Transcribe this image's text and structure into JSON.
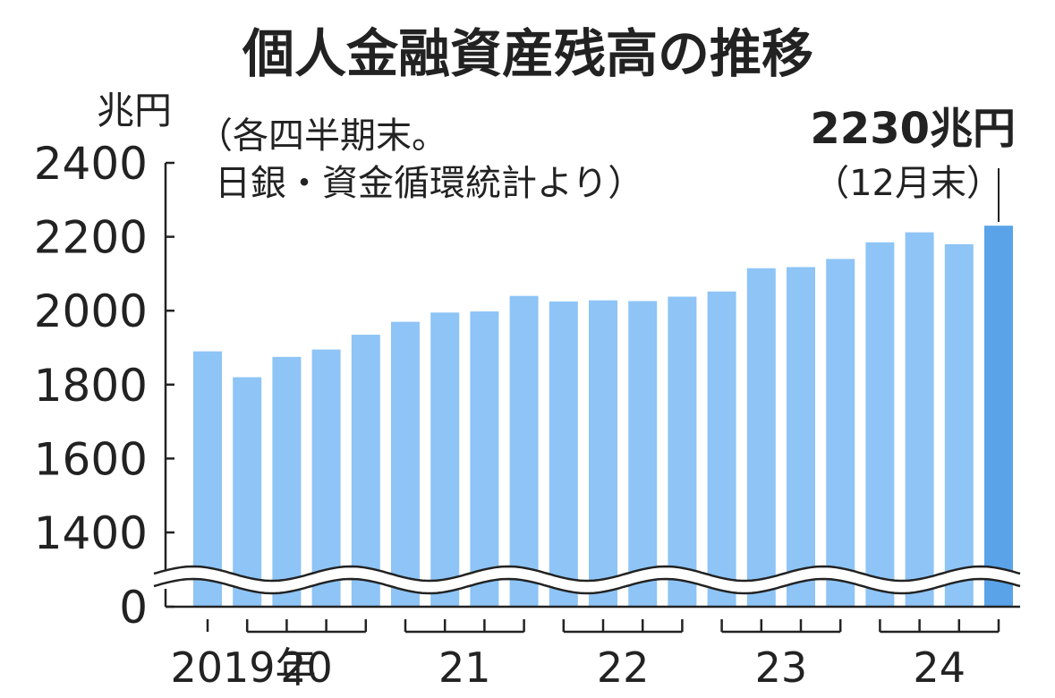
{
  "chart_data": {
    "type": "bar",
    "title": "個人金融資産残高の推移",
    "unit": "兆円",
    "note_line1": "（各四半期末。",
    "note_line2": "日銀・資金循環統計より）",
    "callout_value": "2230兆円",
    "callout_sub": "（12月末）",
    "ylim": [
      1200,
      2400
    ],
    "yticks": [
      "2400",
      "2200",
      "2000",
      "1800",
      "1600",
      "1400",
      "0"
    ],
    "ytick_values": [
      2400,
      2200,
      2000,
      1800,
      1600,
      1400
    ],
    "axis_break": true,
    "year_labels": [
      "2019年",
      "20",
      "21",
      "22",
      "23",
      "24"
    ],
    "year_groups": [
      [
        0,
        0
      ],
      [
        1,
        4
      ],
      [
        5,
        8
      ],
      [
        9,
        12
      ],
      [
        13,
        16
      ],
      [
        17,
        20
      ]
    ],
    "values": [
      1890,
      1820,
      1875,
      1895,
      1935,
      1970,
      1995,
      1998,
      2040,
      2025,
      2028,
      2026,
      2038,
      2052,
      2115,
      2118,
      2140,
      2185,
      2212,
      2180,
      2230
    ],
    "bar_color": "#8ec4f6",
    "highlight_color": "#5aa3e8",
    "highlight_index": 20
  }
}
